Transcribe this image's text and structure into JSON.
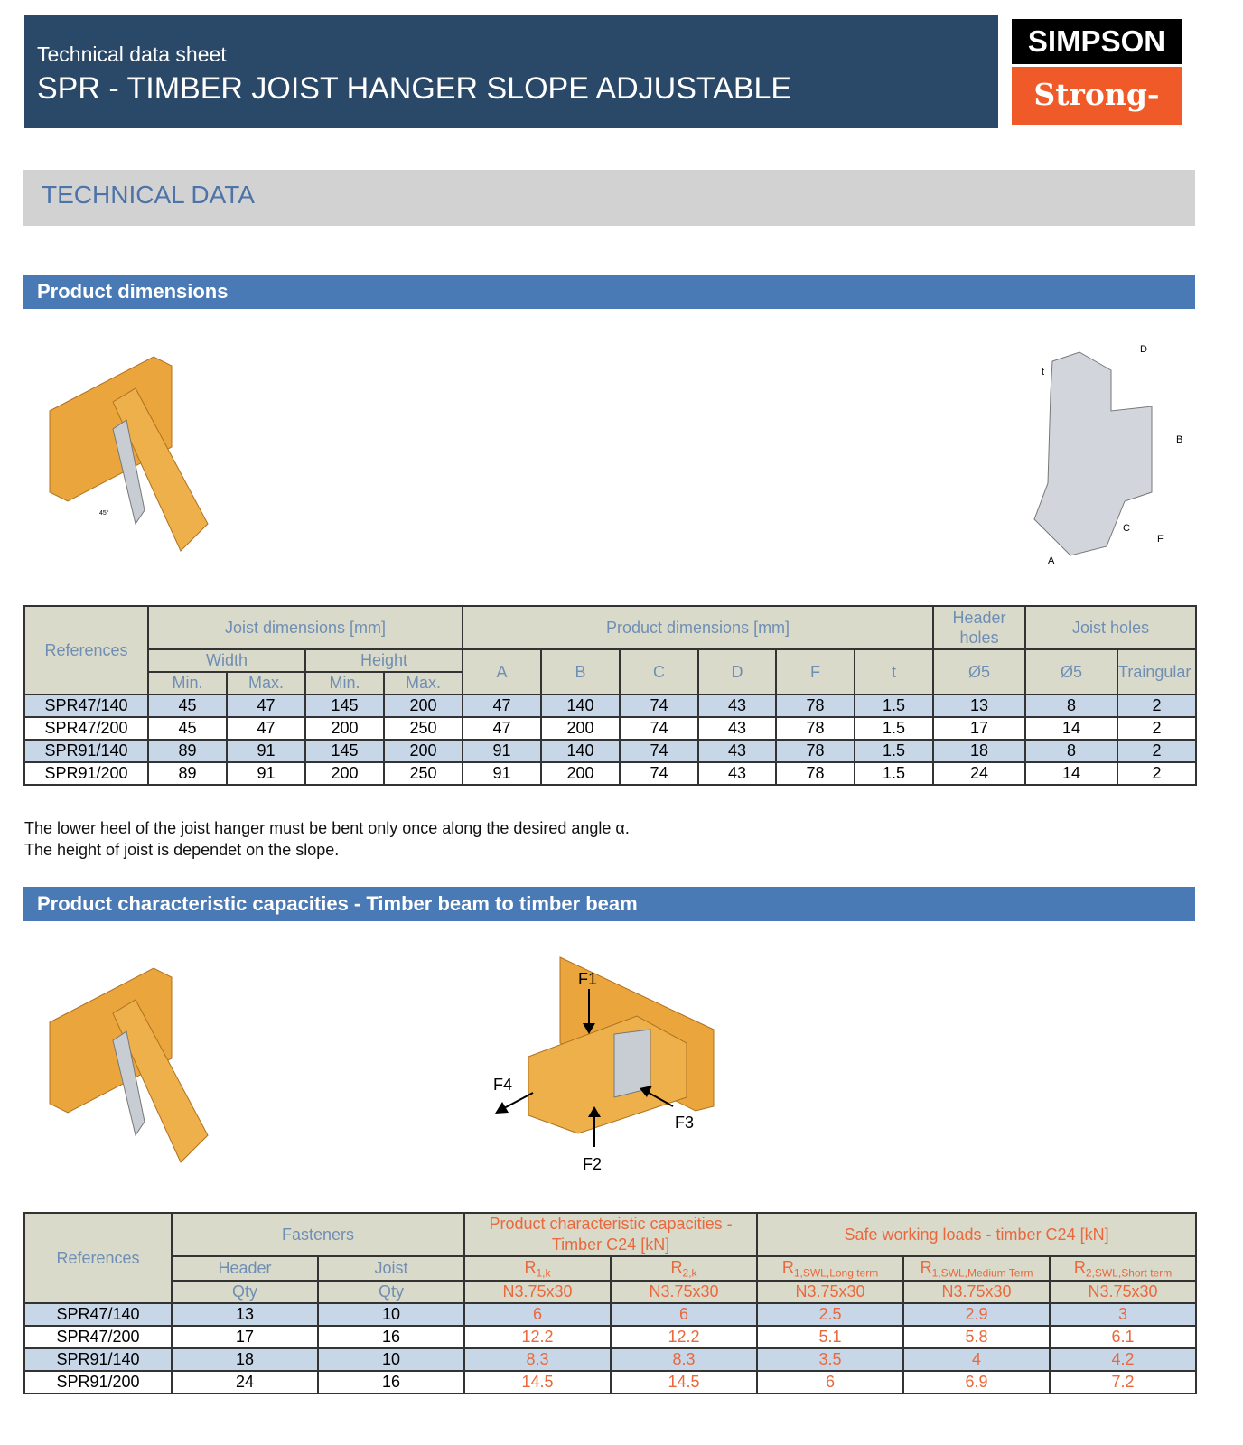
{
  "header": {
    "subtitle": "Technical data sheet",
    "title": "SPR - TIMBER JOIST HANGER SLOPE ADJUSTABLE"
  },
  "logo": {
    "line1": "SIMPSON",
    "line2": "Strong-Tie"
  },
  "section_title": "TECHNICAL DATA",
  "dimensions": {
    "heading": "Product dimensions",
    "diagram_labels": {
      "angle": "45°",
      "d": "D",
      "t": "t",
      "b": "B",
      "c": "C",
      "f": "F",
      "a": "A"
    },
    "table": {
      "references": "References",
      "joist_dims": "Joist dimensions [mm]",
      "product_dims": "Product dimensions [mm]",
      "header_holes": "Header holes",
      "joist_holes": "Joist holes",
      "width": "Width",
      "height": "Height",
      "min": "Min.",
      "max": "Max.",
      "cols": [
        "A",
        "B",
        "C",
        "D",
        "F",
        "t",
        "Ø5",
        "Ø5",
        "Traingular"
      ],
      "rows": [
        [
          "SPR47/140",
          "45",
          "47",
          "145",
          "200",
          "47",
          "140",
          "74",
          "43",
          "78",
          "1.5",
          "13",
          "8",
          "2"
        ],
        [
          "SPR47/200",
          "45",
          "47",
          "200",
          "250",
          "47",
          "200",
          "74",
          "43",
          "78",
          "1.5",
          "17",
          "14",
          "2"
        ],
        [
          "SPR91/140",
          "89",
          "91",
          "145",
          "200",
          "91",
          "140",
          "74",
          "43",
          "78",
          "1.5",
          "18",
          "8",
          "2"
        ],
        [
          "SPR91/200",
          "89",
          "91",
          "200",
          "250",
          "91",
          "200",
          "74",
          "43",
          "78",
          "1.5",
          "24",
          "14",
          "2"
        ]
      ]
    },
    "notes": [
      "The lower heel of the joist hanger must be bent only once along the desired angle α.",
      "The height of joist is dependet on the slope."
    ]
  },
  "capacities": {
    "heading": "Product characteristic capacities - Timber beam to timber beam",
    "forces": {
      "f1": "F1",
      "f2": "F2",
      "f3": "F3",
      "f4": "F4"
    },
    "table": {
      "references": "References",
      "fasteners": "Fasteners",
      "char_caps": "Product characteristic capacities - Timber C24 [kN]",
      "swl": "Safe working loads - timber C24 [kN]",
      "header": "Header",
      "joist": "Joist",
      "qty": "Qty",
      "r_cols": [
        {
          "r": "R",
          "s": "1,k"
        },
        {
          "r": "R",
          "s": "2,k"
        },
        {
          "r": "R",
          "s": "1,SWL,Long term"
        },
        {
          "r": "R",
          "s": "1,SWL,Medium Term"
        },
        {
          "r": "R",
          "s": "2,SWL,Short term"
        }
      ],
      "nail": "N3.75x30",
      "rows": [
        [
          "SPR47/140",
          "13",
          "10",
          "6",
          "6",
          "2.5",
          "2.9",
          "3"
        ],
        [
          "SPR47/200",
          "17",
          "16",
          "12.2",
          "12.2",
          "5.1",
          "5.8",
          "6.1"
        ],
        [
          "SPR91/140",
          "18",
          "10",
          "8.3",
          "8.3",
          "3.5",
          "4",
          "4.2"
        ],
        [
          "SPR91/200",
          "24",
          "16",
          "14.5",
          "14.5",
          "6",
          "6.9",
          "7.2"
        ]
      ]
    }
  }
}
